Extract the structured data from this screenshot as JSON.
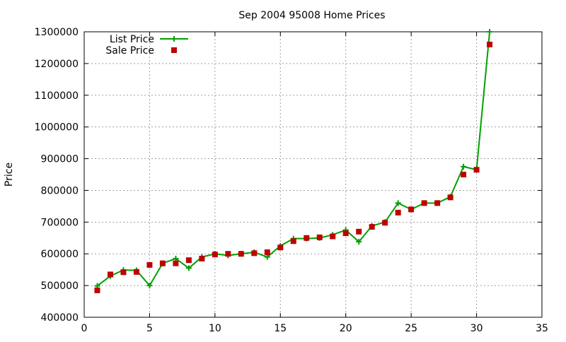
{
  "chart_data": {
    "type": "line",
    "title": "Sep 2004 95008 Home Prices",
    "xlabel": "",
    "ylabel": "Price",
    "xlim": [
      0,
      35
    ],
    "ylim": [
      400000,
      1300000
    ],
    "x_ticks": [
      0,
      5,
      10,
      15,
      20,
      25,
      30,
      35
    ],
    "y_ticks": [
      400000,
      500000,
      600000,
      700000,
      800000,
      900000,
      1000000,
      1100000,
      1200000,
      1300000
    ],
    "grid": true,
    "legend_position": "top-left",
    "series": [
      {
        "name": "List Price",
        "style": "line+cross",
        "color": "#00a000",
        "x": [
          1,
          2,
          3,
          4,
          5,
          6,
          7,
          8,
          9,
          10,
          11,
          12,
          13,
          14,
          15,
          16,
          17,
          18,
          19,
          20,
          21,
          22,
          23,
          24,
          25,
          26,
          27,
          28,
          29,
          30,
          31
        ],
        "values": [
          499000,
          530000,
          549000,
          548000,
          500000,
          570000,
          585000,
          555000,
          590000,
          600000,
          595000,
          600000,
          605000,
          590000,
          625000,
          648000,
          648000,
          650000,
          660000,
          675000,
          638000,
          688000,
          700000,
          760000,
          740000,
          760000,
          760000,
          780000,
          875000,
          865000,
          1300000
        ]
      },
      {
        "name": "Sale Price",
        "style": "square",
        "color": "#c00000",
        "x": [
          1,
          2,
          3,
          4,
          5,
          6,
          7,
          8,
          9,
          10,
          11,
          12,
          13,
          14,
          15,
          16,
          17,
          18,
          19,
          20,
          21,
          22,
          23,
          24,
          25,
          26,
          27,
          28,
          29,
          30,
          31
        ],
        "values": [
          485000,
          535000,
          542000,
          543000,
          565000,
          570000,
          570000,
          580000,
          585000,
          598000,
          600000,
          600000,
          602000,
          605000,
          620000,
          640000,
          650000,
          652000,
          655000,
          665000,
          670000,
          685000,
          698000,
          730000,
          740000,
          760000,
          760000,
          778000,
          850000,
          865000,
          1260000
        ]
      }
    ]
  }
}
